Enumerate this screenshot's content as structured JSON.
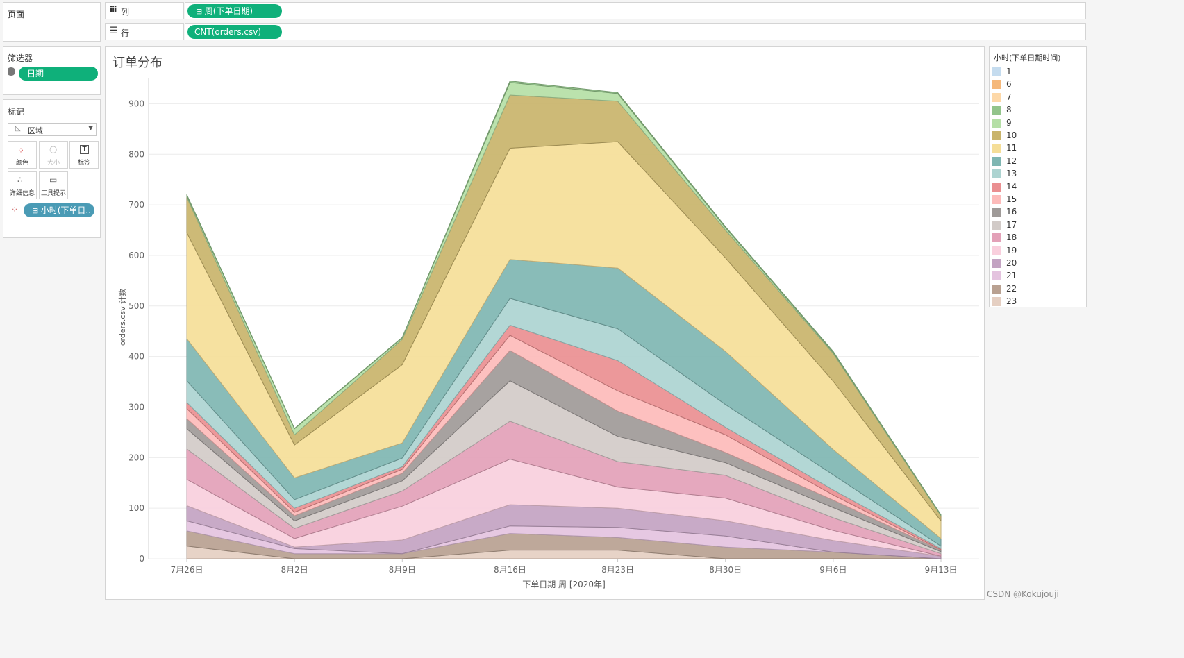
{
  "shelves": {
    "pages_label": "页面",
    "columns_label": "列",
    "columns_pill": "周(下单日期)",
    "rows_label": "行",
    "rows_pill": "CNT(orders.csv)"
  },
  "filters": {
    "title": "筛选器",
    "pill": "日期"
  },
  "marks": {
    "title": "标记",
    "type": "区域",
    "buttons": [
      "颜色",
      "大小",
      "标签",
      "详细信息",
      "工具提示"
    ],
    "color_pill": "小时(下单日.."
  },
  "legend": {
    "title": "小时(下单日期时间)",
    "items": [
      {
        "label": "1",
        "color": "#c5dcef"
      },
      {
        "label": "6",
        "color": "#f5b87a"
      },
      {
        "label": "7",
        "color": "#fdd8a8"
      },
      {
        "label": "8",
        "color": "#93c48b"
      },
      {
        "label": "9",
        "color": "#b5dfa6"
      },
      {
        "label": "10",
        "color": "#c9b46b"
      },
      {
        "label": "11",
        "color": "#f5de98"
      },
      {
        "label": "12",
        "color": "#7fb6b2"
      },
      {
        "label": "13",
        "color": "#add4d1"
      },
      {
        "label": "14",
        "color": "#ea8f91"
      },
      {
        "label": "15",
        "color": "#fdbbba"
      },
      {
        "label": "16",
        "color": "#9f9a98"
      },
      {
        "label": "17",
        "color": "#d2cbc8"
      },
      {
        "label": "18",
        "color": "#e3a1b8"
      },
      {
        "label": "19",
        "color": "#f9cfdd"
      },
      {
        "label": "20",
        "color": "#c3a3c2"
      },
      {
        "label": "21",
        "color": "#e4c3df"
      },
      {
        "label": "22",
        "color": "#b9a191"
      },
      {
        "label": "23",
        "color": "#e5cfc2"
      }
    ]
  },
  "chart_data": {
    "type": "area",
    "stacked": true,
    "title": "订单分布",
    "xlabel": "下单日期 周 [2020年]",
    "ylabel": "orders.csv 计数",
    "categories": [
      "7月26日",
      "8月2日",
      "8月9日",
      "8月16日",
      "8月23日",
      "8月30日",
      "9月6日",
      "9月13日"
    ],
    "ylim": [
      0,
      950
    ],
    "yticks": [
      0,
      100,
      200,
      300,
      400,
      500,
      600,
      700,
      800,
      900
    ],
    "series": [
      {
        "name": "23",
        "values": [
          25,
          0,
          0,
          17,
          17,
          0,
          0,
          0
        ]
      },
      {
        "name": "22",
        "values": [
          30,
          10,
          10,
          33,
          25,
          23,
          13,
          0
        ]
      },
      {
        "name": "21",
        "values": [
          20,
          10,
          0,
          15,
          20,
          22,
          0,
          0
        ]
      },
      {
        "name": "20",
        "values": [
          30,
          3,
          27,
          42,
          38,
          30,
          23,
          5
        ]
      },
      {
        "name": "19",
        "values": [
          52,
          17,
          67,
          90,
          42,
          45,
          20,
          0
        ]
      },
      {
        "name": "18",
        "values": [
          60,
          20,
          30,
          75,
          50,
          45,
          25,
          5
        ]
      },
      {
        "name": "17",
        "values": [
          40,
          15,
          20,
          80,
          50,
          25,
          20,
          4
        ]
      },
      {
        "name": "16",
        "values": [
          20,
          10,
          15,
          60,
          50,
          20,
          15,
          3
        ]
      },
      {
        "name": "15",
        "values": [
          20,
          7,
          8,
          30,
          40,
          35,
          10,
          1
        ]
      },
      {
        "name": "14",
        "values": [
          12,
          8,
          5,
          20,
          60,
          15,
          10,
          2
        ]
      },
      {
        "name": "13",
        "values": [
          43,
          17,
          17,
          53,
          63,
          45,
          30,
          5
        ]
      },
      {
        "name": "12",
        "values": [
          83,
          43,
          30,
          77,
          120,
          105,
          50,
          15
        ]
      },
      {
        "name": "11",
        "values": [
          210,
          65,
          155,
          220,
          250,
          185,
          135,
          35
        ]
      },
      {
        "name": "10",
        "values": [
          70,
          20,
          50,
          105,
          80,
          55,
          55,
          10
        ]
      },
      {
        "name": "9",
        "values": [
          3,
          12,
          3,
          25,
          15,
          5,
          2,
          1
        ]
      },
      {
        "name": "8",
        "values": [
          2,
          1,
          1,
          3,
          2,
          2,
          2,
          1
        ]
      }
    ]
  },
  "watermark": "CSDN @Kokujouji"
}
